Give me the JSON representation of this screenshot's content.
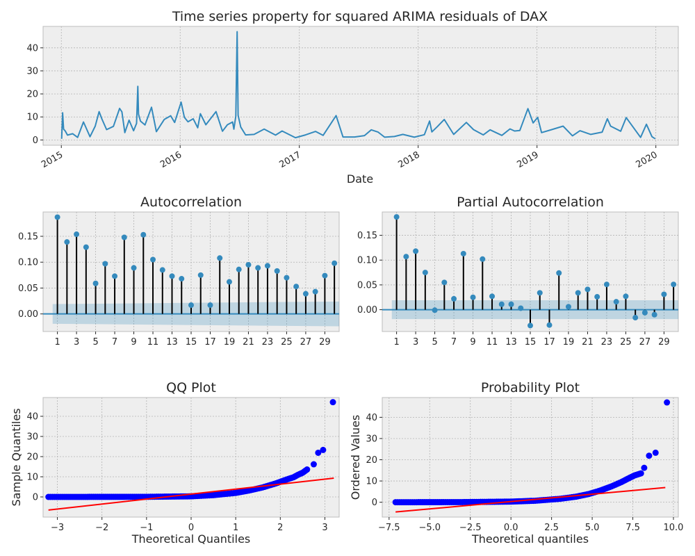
{
  "figure": {
    "suptitle": "Time series property for squared ARIMA residuals of DAX"
  },
  "colors": {
    "series": "#348abd",
    "stem": "#000000",
    "confband": "#348abd",
    "qq_points": "#0000ff",
    "qq_line": "#ff0000",
    "panel_bg": "#eeeeee",
    "grid": "#b2b2b2"
  },
  "chart_data": [
    {
      "id": "timeseries",
      "type": "line",
      "title": "",
      "xlabel": "Date",
      "ylabel": "",
      "x_range": [
        "2014-11-06",
        "2020-03-10"
      ],
      "ylim": [
        -2.3,
        49.3
      ],
      "y_ticks": [
        0,
        10,
        20,
        30,
        40
      ],
      "x_ticks": [
        "2015-01-01",
        "2016-01-01",
        "2017-01-01",
        "2018-01-01",
        "2019-01-01",
        "2020-01-01"
      ],
      "x_tick_labels": [
        "2015",
        "2016",
        "2017",
        "2018",
        "2019",
        "2020"
      ],
      "series": [
        {
          "points": [
            [
              "2015-01-02",
              0.5
            ],
            [
              "2015-01-05",
              11.8
            ],
            [
              "2015-01-08",
              4.7
            ],
            [
              "2015-01-13",
              3.9
            ],
            [
              "2015-01-20",
              2.1
            ],
            [
              "2015-02-05",
              2.7
            ],
            [
              "2015-02-20",
              1.1
            ],
            [
              "2015-03-10",
              7.8
            ],
            [
              "2015-03-30",
              1.4
            ],
            [
              "2015-04-15",
              6.0
            ],
            [
              "2015-04-27",
              12.3
            ],
            [
              "2015-05-06",
              9.0
            ],
            [
              "2015-05-20",
              4.5
            ],
            [
              "2015-06-10",
              5.9
            ],
            [
              "2015-06-29",
              13.7
            ],
            [
              "2015-07-06",
              12.2
            ],
            [
              "2015-07-15",
              3.2
            ],
            [
              "2015-07-28",
              8.6
            ],
            [
              "2015-08-11",
              4.0
            ],
            [
              "2015-08-20",
              7.2
            ],
            [
              "2015-08-24",
              23.3
            ],
            [
              "2015-08-26",
              11.2
            ],
            [
              "2015-09-01",
              8.2
            ],
            [
              "2015-09-15",
              6.5
            ],
            [
              "2015-10-05",
              14.2
            ],
            [
              "2015-10-20",
              3.6
            ],
            [
              "2015-11-13",
              8.9
            ],
            [
              "2015-12-03",
              10.5
            ],
            [
              "2015-12-15",
              7.6
            ],
            [
              "2016-01-04",
              16.4
            ],
            [
              "2016-01-14",
              9.8
            ],
            [
              "2016-01-25",
              7.9
            ],
            [
              "2016-02-10",
              9.2
            ],
            [
              "2016-02-24",
              5.3
            ],
            [
              "2016-03-03",
              11.4
            ],
            [
              "2016-03-20",
              6.6
            ],
            [
              "2016-04-20",
              12.3
            ],
            [
              "2016-05-10",
              3.8
            ],
            [
              "2016-05-25",
              6.6
            ],
            [
              "2016-06-10",
              7.8
            ],
            [
              "2016-06-14",
              4.7
            ],
            [
              "2016-06-20",
              10.3
            ],
            [
              "2016-06-24",
              47.0
            ],
            [
              "2016-06-27",
              10.7
            ],
            [
              "2016-07-05",
              5.6
            ],
            [
              "2016-07-20",
              2.2
            ],
            [
              "2016-08-15",
              2.4
            ],
            [
              "2016-09-15",
              4.7
            ],
            [
              "2016-10-20",
              2.1
            ],
            [
              "2016-11-09",
              3.9
            ],
            [
              "2016-12-20",
              1.0
            ],
            [
              "2017-01-20",
              2.2
            ],
            [
              "2017-02-20",
              3.7
            ],
            [
              "2017-03-15",
              2.0
            ],
            [
              "2017-04-24",
              10.6
            ],
            [
              "2017-05-15",
              1.3
            ],
            [
              "2017-06-20",
              1.3
            ],
            [
              "2017-07-20",
              1.9
            ],
            [
              "2017-08-10",
              4.4
            ],
            [
              "2017-08-31",
              3.4
            ],
            [
              "2017-09-20",
              1.2
            ],
            [
              "2017-10-20",
              1.5
            ],
            [
              "2017-11-15",
              2.4
            ],
            [
              "2017-12-20",
              1.2
            ],
            [
              "2018-01-20",
              2.3
            ],
            [
              "2018-02-05",
              8.2
            ],
            [
              "2018-02-12",
              3.5
            ],
            [
              "2018-03-01",
              5.8
            ],
            [
              "2018-03-22",
              8.9
            ],
            [
              "2018-04-20",
              2.4
            ],
            [
              "2018-05-29",
              7.6
            ],
            [
              "2018-06-20",
              4.5
            ],
            [
              "2018-07-20",
              2.2
            ],
            [
              "2018-08-10",
              4.4
            ],
            [
              "2018-09-15",
              2.0
            ],
            [
              "2018-10-10",
              4.8
            ],
            [
              "2018-10-24",
              3.9
            ],
            [
              "2018-11-09",
              4.1
            ],
            [
              "2018-12-04",
              13.6
            ],
            [
              "2018-12-20",
              7.4
            ],
            [
              "2019-01-03",
              9.8
            ],
            [
              "2019-01-15",
              3.2
            ],
            [
              "2019-02-15",
              4.5
            ],
            [
              "2019-03-22",
              6.0
            ],
            [
              "2019-04-20",
              1.8
            ],
            [
              "2019-05-13",
              4.0
            ],
            [
              "2019-06-15",
              2.4
            ],
            [
              "2019-07-20",
              3.4
            ],
            [
              "2019-08-05",
              9.2
            ],
            [
              "2019-08-15",
              6.0
            ],
            [
              "2019-09-15",
              3.8
            ],
            [
              "2019-10-02",
              9.7
            ],
            [
              "2019-11-15",
              1.1
            ],
            [
              "2019-12-03",
              6.8
            ],
            [
              "2019-12-20",
              1.4
            ],
            [
              "2019-12-30",
              0.5
            ]
          ]
        }
      ]
    },
    {
      "id": "acf",
      "type": "bar",
      "title": "Autocorrelation",
      "xlabel": "",
      "ylabel": "",
      "xlim": [
        -0.5,
        30.5
      ],
      "ylim": [
        -0.034,
        0.197
      ],
      "x_ticks": [
        1,
        3,
        5,
        7,
        9,
        11,
        13,
        15,
        17,
        19,
        21,
        23,
        25,
        27,
        29
      ],
      "y_ticks": [
        0.0,
        0.05,
        0.1,
        0.15
      ],
      "y_tick_labels": [
        "0.00",
        "0.05",
        "0.10",
        "0.15"
      ],
      "lags": [
        1,
        2,
        3,
        4,
        5,
        6,
        7,
        8,
        9,
        10,
        11,
        12,
        13,
        14,
        15,
        16,
        17,
        18,
        19,
        20,
        21,
        22,
        23,
        24,
        25,
        26,
        27,
        28,
        29,
        30
      ],
      "values": [
        0.187,
        0.139,
        0.154,
        0.129,
        0.059,
        0.097,
        0.073,
        0.148,
        0.089,
        0.153,
        0.105,
        0.085,
        0.073,
        0.068,
        0.017,
        0.075,
        0.017,
        0.108,
        0.062,
        0.086,
        0.095,
        0.089,
        0.093,
        0.083,
        0.07,
        0.053,
        0.039,
        0.043,
        0.074,
        0.098
      ],
      "confidence_band": [
        [
          0.5,
          0.019
        ],
        [
          30.5,
          0.024
        ]
      ]
    },
    {
      "id": "pacf",
      "type": "bar",
      "title": "Partial Autocorrelation",
      "xlabel": "",
      "ylabel": "",
      "xlim": [
        -0.5,
        30.5
      ],
      "ylim": [
        -0.044,
        0.197
      ],
      "x_ticks": [
        1,
        3,
        5,
        7,
        9,
        11,
        13,
        15,
        17,
        19,
        21,
        23,
        25,
        27,
        29
      ],
      "y_ticks": [
        0.0,
        0.05,
        0.1,
        0.15
      ],
      "y_tick_labels": [
        "0.00",
        "0.05",
        "0.10",
        "0.15"
      ],
      "lags": [
        1,
        2,
        3,
        4,
        5,
        6,
        7,
        8,
        9,
        10,
        11,
        12,
        13,
        14,
        15,
        16,
        17,
        18,
        19,
        20,
        21,
        22,
        23,
        24,
        25,
        26,
        27,
        28,
        29,
        30
      ],
      "values": [
        0.187,
        0.107,
        0.118,
        0.075,
        -0.001,
        0.055,
        0.022,
        0.113,
        0.025,
        0.102,
        0.027,
        0.011,
        0.011,
        0.003,
        -0.032,
        0.034,
        -0.031,
        0.074,
        0.006,
        0.034,
        0.041,
        0.026,
        0.051,
        0.016,
        0.027,
        -0.016,
        -0.006,
        -0.01,
        0.031,
        0.051
      ],
      "confidence_band": [
        [
          0.5,
          0.019
        ],
        [
          30.5,
          0.019
        ]
      ]
    },
    {
      "id": "qq",
      "type": "scatter",
      "title": "QQ Plot",
      "xlabel": "Theoretical Quantiles",
      "ylabel": "Sample Quantiles",
      "xlim": [
        -3.32,
        3.32
      ],
      "ylim": [
        -10,
        49.3
      ],
      "x_ticks": [
        -3,
        -2,
        -1,
        0,
        1,
        2,
        3
      ],
      "x_tick_labels": [
        "−3",
        "−2",
        "−1",
        "0",
        "1",
        "2",
        "3"
      ],
      "y_ticks": [
        0,
        10,
        20,
        30,
        40
      ],
      "reference_line": [
        [
          -3.2,
          -6.5
        ],
        [
          3.2,
          9.3
        ]
      ],
      "curve": [
        [
          -3.2,
          0.0
        ],
        [
          -1.0,
          0.05
        ],
        [
          0.0,
          0.3
        ],
        [
          0.5,
          0.9
        ],
        [
          1.0,
          2.0
        ],
        [
          1.3,
          3.2
        ],
        [
          1.6,
          4.7
        ],
        [
          1.9,
          6.7
        ],
        [
          2.1,
          8.3
        ],
        [
          2.3,
          9.8
        ],
        [
          2.4,
          11.0
        ],
        [
          2.5,
          12.0
        ],
        [
          2.6,
          13.6
        ]
      ],
      "outliers": [
        [
          2.75,
          16.2
        ],
        [
          2.85,
          21.9
        ],
        [
          2.96,
          23.3
        ],
        [
          3.18,
          47.0
        ]
      ]
    },
    {
      "id": "probplot",
      "type": "scatter",
      "title": "Probability Plot",
      "xlabel": "Theoretical quantiles",
      "ylabel": "Ordered Values",
      "xlim": [
        -7.92,
        10.3
      ],
      "ylim": [
        -7,
        49.3
      ],
      "x_ticks": [
        -7.5,
        -5.0,
        -2.5,
        0.0,
        2.5,
        5.0,
        7.5,
        10.0
      ],
      "x_tick_labels": [
        "−7.5",
        "−5.0",
        "−2.5",
        "0.0",
        "2.5",
        "5.0",
        "7.5",
        "10.0"
      ],
      "y_ticks": [
        0,
        10,
        20,
        30,
        40
      ],
      "reference_line": [
        [
          -7.1,
          -4.6
        ],
        [
          9.5,
          6.9
        ]
      ],
      "curve": [
        [
          -7.1,
          0.0
        ],
        [
          -3.0,
          0.05
        ],
        [
          0.0,
          0.3
        ],
        [
          1.5,
          0.7
        ],
        [
          3.0,
          1.6
        ],
        [
          4.0,
          2.6
        ],
        [
          4.8,
          3.9
        ],
        [
          5.5,
          5.5
        ],
        [
          6.2,
          7.5
        ],
        [
          6.8,
          9.5
        ],
        [
          7.2,
          11.1
        ],
        [
          7.6,
          12.6
        ],
        [
          8.0,
          13.6
        ]
      ],
      "outliers": [
        [
          8.2,
          16.2
        ],
        [
          8.5,
          21.9
        ],
        [
          8.9,
          23.3
        ],
        [
          9.6,
          47.0
        ]
      ]
    }
  ]
}
